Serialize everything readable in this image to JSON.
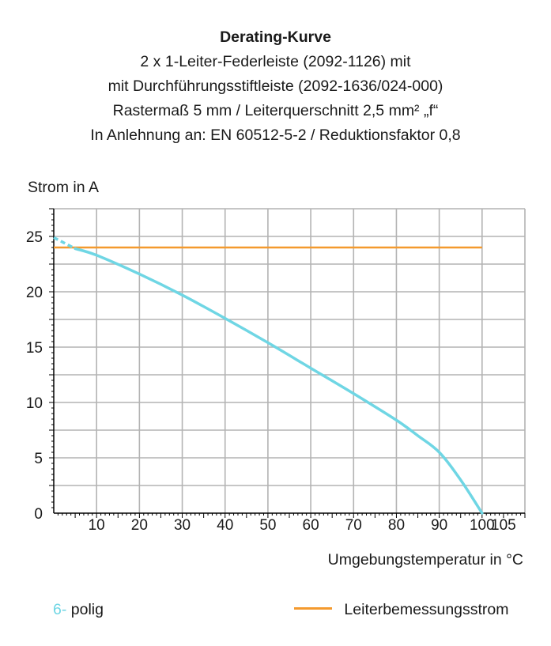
{
  "title": "Derating-Kurve",
  "subtitle_lines": [
    "2 x 1-Leiter-Federleiste (2092-1126) mit",
    "mit Durchführungsstiftleiste (2092-1636/024-000)",
    "Rastermaß 5 mm / Leiterquerschnitt 2,5 mm² „f“",
    "In Anlehnung an: EN 60512-5-2 / Reduktionsfaktor 0,8"
  ],
  "colors": {
    "series": "#6fd6e4",
    "reference": "#f49a2e",
    "grid": "#b3b3b3",
    "axis": "#000000"
  },
  "legend": {
    "series_number": "6-",
    "series_label": "polig",
    "reference_label": "Leiterbemessungsstrom"
  },
  "chart_data": {
    "type": "line",
    "ylabel": "Strom in A",
    "xlabel": "Umgebungstemperatur in °C",
    "xlim": [
      0,
      110
    ],
    "ylim": [
      0,
      27.5
    ],
    "x_ticks": [
      10,
      20,
      30,
      40,
      50,
      60,
      70,
      80,
      90,
      100,
      105
    ],
    "y_ticks": [
      0,
      5,
      10,
      15,
      20,
      25
    ],
    "grid": true,
    "series": [
      {
        "name": "6-polig",
        "dashed_until_x": 5,
        "x": [
          0,
          5,
          10,
          20,
          30,
          40,
          50,
          60,
          70,
          80,
          85,
          90,
          95,
          100
        ],
        "y": [
          24.9,
          23.9,
          23.3,
          21.6,
          19.7,
          17.6,
          15.4,
          13.1,
          10.8,
          8.4,
          7.0,
          5.5,
          3.0,
          0
        ]
      },
      {
        "name": "Leiterbemessungsstrom",
        "x": [
          0,
          100
        ],
        "y": [
          24,
          24
        ]
      }
    ]
  }
}
